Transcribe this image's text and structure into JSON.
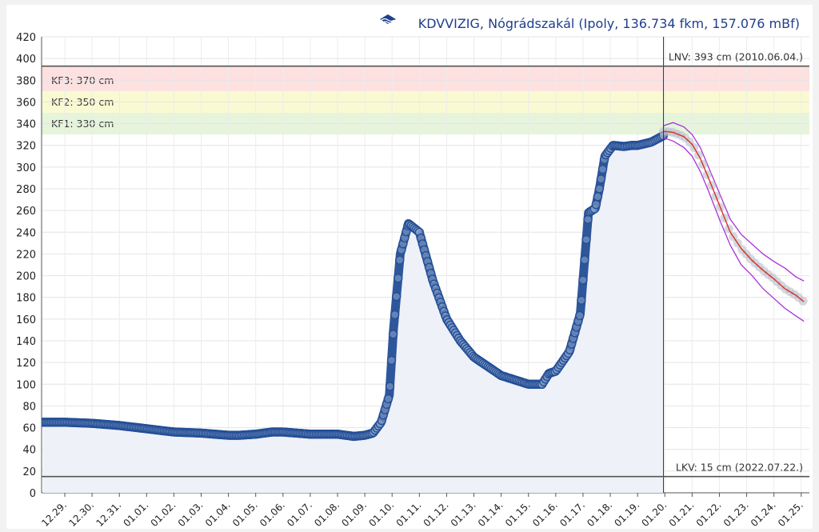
{
  "header": {
    "title": "KDVVIZIG, Nógrádszakál (Ipoly, 136.734 fkm, 157.076 mBf)",
    "logo_icon": "kdvvizig-wave-logo-icon",
    "title_color": "#1f3f8c"
  },
  "chart_data": {
    "type": "line",
    "title": "KDVVIZIG, Nógrádszakál (Ipoly, 136.734 fkm, 157.076 mBf)",
    "xlabel": "",
    "ylabel": "",
    "ylim": [
      0,
      420
    ],
    "ytick_step": 20,
    "y_ticks": [
      "0",
      "20",
      "40",
      "60",
      "80",
      "100",
      "120",
      "140",
      "160",
      "180",
      "200",
      "220",
      "240",
      "260",
      "280",
      "300",
      "320",
      "340",
      "360",
      "380",
      "400",
      "420"
    ],
    "xlim": [
      -0.85,
      27.3
    ],
    "x_ticks": [
      "12.29.",
      "12.30.",
      "12.31.",
      "01.01.",
      "01.02.",
      "01.03.",
      "01.04.",
      "01.05.",
      "01.06.",
      "01.07.",
      "01.08.",
      "01.09.",
      "01.10.",
      "01.11.",
      "01.12.",
      "01.13.",
      "01.14.",
      "01.15.",
      "01.16.",
      "01.17.",
      "01.18.",
      "01.19.",
      "01.20.",
      "01.21.",
      "01.22.",
      "01.23.",
      "01.24.",
      "01.25."
    ],
    "grid": true,
    "bands": [
      {
        "label": "KF1: 330 cm",
        "from": 330,
        "to": 350,
        "color": "#e6f4dc"
      },
      {
        "label": "KF2: 350 cm",
        "from": 350,
        "to": 370,
        "color": "#fafad2"
      },
      {
        "label": "KF3: 370 cm",
        "from": 370,
        "to": 393,
        "color": "#fde0e0"
      }
    ],
    "reference_lines": [
      {
        "label": "LNV: 393 cm (2010.06.04.)",
        "value": 393,
        "color": "#555555"
      },
      {
        "label": "LKV: 15 cm (2022.07.22.)",
        "value": 15,
        "color": "#555555"
      }
    ],
    "now_marker": 21.95,
    "series": [
      {
        "kind": "measured",
        "color": "#234e96",
        "area_color": "#eef1f8",
        "x": [
          -0.8,
          0,
          1,
          2,
          3,
          4,
          5,
          6,
          6.4,
          7,
          7.6,
          8,
          9,
          10,
          10.6,
          11,
          11.3,
          11.6,
          11.9,
          12.05,
          12.3,
          12.6,
          13,
          13.5,
          14,
          14.5,
          15,
          16,
          17,
          17.5,
          17.75,
          18,
          18.5,
          18.9,
          19.2,
          19.45,
          19.6,
          19.8,
          20.1,
          20.5,
          20.8,
          21,
          21.5,
          21.95
        ],
        "values": [
          65,
          65,
          64,
          62,
          59,
          56,
          55,
          53,
          53,
          54,
          56,
          56,
          54,
          54,
          52,
          53,
          55,
          65,
          90,
          150,
          220,
          248,
          240,
          195,
          160,
          140,
          125,
          108,
          100,
          100,
          110,
          112,
          130,
          165,
          258,
          262,
          280,
          310,
          320,
          319,
          320,
          320,
          323,
          329
        ]
      },
      {
        "kind": "forecast",
        "color": "#d9302c",
        "band_color": "#a832d8",
        "x": [
          21.95,
          22.3,
          22.7,
          23,
          23.3,
          23.6,
          24,
          24.4,
          24.8,
          25.2,
          25.6,
          26,
          26.4,
          26.8,
          27.1
        ],
        "values": [
          333,
          332,
          328,
          321,
          308,
          290,
          265,
          240,
          225,
          214,
          205,
          197,
          188,
          182,
          176
        ],
        "upper": [
          338,
          341,
          337,
          330,
          318,
          300,
          276,
          252,
          238,
          229,
          220,
          213,
          207,
          199,
          195
        ],
        "lower": [
          327,
          324,
          318,
          310,
          296,
          278,
          252,
          228,
          210,
          200,
          188,
          179,
          170,
          163,
          158
        ]
      }
    ]
  }
}
